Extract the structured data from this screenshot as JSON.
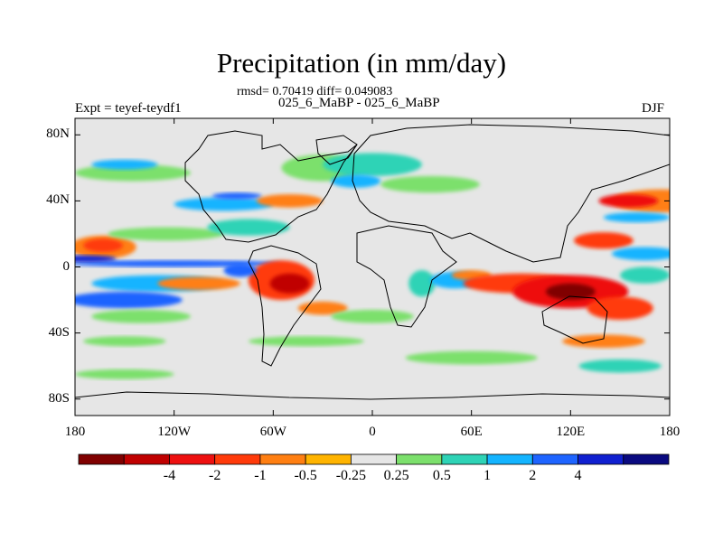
{
  "title": "Precipitation (in mm/day)",
  "stats_line": "rmsd= 0.70419 diff= 0.049083",
  "case_line": "025_6_MaBP - 025_6_MaBP",
  "left_label": "Expt = teyef-teydf1",
  "right_label": "DJF",
  "colors": {
    "levels": [
      "#800000",
      "#c00000",
      "#ee1010",
      "#ff3a0a",
      "#ff7f12",
      "#ffb400",
      "#e6e6e6",
      "#7ce06c",
      "#2ed3b6",
      "#14b4ff",
      "#1e64ff",
      "#1020d0",
      "#0a0a80"
    ]
  },
  "chart_data": {
    "type": "heatmap",
    "projection": "cylindrical-equidistant",
    "title": "Precipitation (in mm/day)",
    "x_axis": {
      "range": [
        -180,
        180
      ],
      "ticks": [
        -180,
        -120,
        -60,
        0,
        60,
        120,
        180
      ],
      "tick_labels": [
        "180",
        "120W",
        "60W",
        "0",
        "60E",
        "120E",
        "180"
      ]
    },
    "y_axis": {
      "range": [
        -90,
        90
      ],
      "ticks": [
        80,
        40,
        0,
        -40,
        -80
      ],
      "tick_labels": [
        "80N",
        "40N",
        "0",
        "40S",
        "80S"
      ]
    },
    "colorbar": {
      "labels": [
        "-4",
        "-2",
        "-1",
        "-0.5",
        "-0.25",
        "0.25",
        "0.5",
        "1",
        "2",
        "4"
      ]
    },
    "features": [
      {
        "lon": -163,
        "lat": 12,
        "rx": 20,
        "ry": 7,
        "level": 4
      },
      {
        "lon": -163,
        "lat": 13,
        "rx": 12,
        "ry": 4,
        "level": 3
      },
      {
        "lon": -120,
        "lat": 2,
        "rx": 65,
        "ry": 2,
        "level": 10
      },
      {
        "lon": -175,
        "lat": 5,
        "rx": 20,
        "ry": 2,
        "level": 11
      },
      {
        "lon": -125,
        "lat": 20,
        "rx": 35,
        "ry": 4,
        "level": 7
      },
      {
        "lon": -90,
        "lat": 38,
        "rx": 30,
        "ry": 4,
        "level": 9
      },
      {
        "lon": -82,
        "lat": 43,
        "rx": 15,
        "ry": 2,
        "level": 10
      },
      {
        "lon": -75,
        "lat": 24,
        "rx": 25,
        "ry": 5,
        "level": 8
      },
      {
        "lon": -145,
        "lat": 57,
        "rx": 35,
        "ry": 5,
        "level": 7
      },
      {
        "lon": -150,
        "lat": 62,
        "rx": 20,
        "ry": 3,
        "level": 9
      },
      {
        "lon": -30,
        "lat": 60,
        "rx": 25,
        "ry": 8,
        "level": 7
      },
      {
        "lon": 0,
        "lat": 62,
        "rx": 30,
        "ry": 7,
        "level": 8
      },
      {
        "lon": -10,
        "lat": 52,
        "rx": 15,
        "ry": 4,
        "level": 9
      },
      {
        "lon": 35,
        "lat": 50,
        "rx": 30,
        "ry": 5,
        "level": 7
      },
      {
        "lon": -50,
        "lat": 40,
        "rx": 20,
        "ry": 4,
        "level": 4
      },
      {
        "lon": 175,
        "lat": 40,
        "rx": 30,
        "ry": 7,
        "level": 4
      },
      {
        "lon": 155,
        "lat": 40,
        "rx": 18,
        "ry": 4,
        "level": 2
      },
      {
        "lon": 160,
        "lat": 30,
        "rx": 20,
        "ry": 3,
        "level": 9
      },
      {
        "lon": 140,
        "lat": 16,
        "rx": 18,
        "ry": 5,
        "level": 3
      },
      {
        "lon": 165,
        "lat": 8,
        "rx": 20,
        "ry": 4,
        "level": 9
      },
      {
        "lon": -130,
        "lat": -10,
        "rx": 40,
        "ry": 5,
        "level": 9
      },
      {
        "lon": -150,
        "lat": -20,
        "rx": 35,
        "ry": 5,
        "level": 10
      },
      {
        "lon": -140,
        "lat": -30,
        "rx": 30,
        "ry": 4,
        "level": 7
      },
      {
        "lon": -105,
        "lat": -10,
        "rx": 25,
        "ry": 4,
        "level": 4
      },
      {
        "lon": -55,
        "lat": -8,
        "rx": 20,
        "ry": 12,
        "level": 3
      },
      {
        "lon": -50,
        "lat": -10,
        "rx": 12,
        "ry": 6,
        "level": 1
      },
      {
        "lon": -80,
        "lat": -2,
        "rx": 10,
        "ry": 4,
        "level": 10
      },
      {
        "lon": -30,
        "lat": -25,
        "rx": 15,
        "ry": 4,
        "level": 4
      },
      {
        "lon": 0,
        "lat": -30,
        "rx": 25,
        "ry": 4,
        "level": 7
      },
      {
        "lon": 30,
        "lat": -10,
        "rx": 8,
        "ry": 8,
        "level": 8
      },
      {
        "lon": 50,
        "lat": -8,
        "rx": 15,
        "ry": 5,
        "level": 9
      },
      {
        "lon": 60,
        "lat": -5,
        "rx": 12,
        "ry": 3,
        "level": 4
      },
      {
        "lon": 90,
        "lat": -10,
        "rx": 35,
        "ry": 6,
        "level": 3
      },
      {
        "lon": 120,
        "lat": -15,
        "rx": 35,
        "ry": 10,
        "level": 2
      },
      {
        "lon": 120,
        "lat": -15,
        "rx": 15,
        "ry": 5,
        "level": 0
      },
      {
        "lon": 150,
        "lat": -25,
        "rx": 20,
        "ry": 7,
        "level": 3
      },
      {
        "lon": 165,
        "lat": -5,
        "rx": 15,
        "ry": 5,
        "level": 8
      },
      {
        "lon": 140,
        "lat": -45,
        "rx": 25,
        "ry": 4,
        "level": 4
      },
      {
        "lon": -40,
        "lat": -45,
        "rx": 35,
        "ry": 3,
        "level": 7
      },
      {
        "lon": -150,
        "lat": -45,
        "rx": 25,
        "ry": 3,
        "level": 7
      },
      {
        "lon": 60,
        "lat": -55,
        "rx": 40,
        "ry": 4,
        "level": 7
      },
      {
        "lon": 150,
        "lat": -60,
        "rx": 25,
        "ry": 4,
        "level": 8
      },
      {
        "lon": -150,
        "lat": -65,
        "rx": 30,
        "ry": 3,
        "level": 7
      }
    ]
  }
}
